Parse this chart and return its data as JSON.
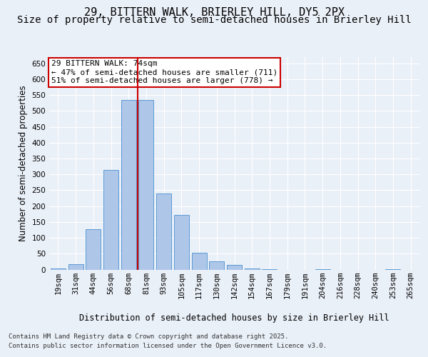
{
  "title1": "29, BITTERN WALK, BRIERLEY HILL, DY5 2PX",
  "title2": "Size of property relative to semi-detached houses in Brierley Hill",
  "xlabel": "Distribution of semi-detached houses by size in Brierley Hill",
  "ylabel": "Number of semi-detached properties",
  "categories": [
    "19sqm",
    "31sqm",
    "44sqm",
    "56sqm",
    "68sqm",
    "81sqm",
    "93sqm",
    "105sqm",
    "117sqm",
    "130sqm",
    "142sqm",
    "154sqm",
    "167sqm",
    "179sqm",
    "191sqm",
    "204sqm",
    "216sqm",
    "228sqm",
    "240sqm",
    "253sqm",
    "265sqm"
  ],
  "values": [
    3,
    18,
    128,
    315,
    535,
    535,
    240,
    172,
    54,
    27,
    15,
    3,
    2,
    0,
    0,
    1,
    0,
    0,
    0,
    1,
    0
  ],
  "bar_color": "#aec6e8",
  "bar_edge_color": "#5b9bd5",
  "vline_x": 4.5,
  "vline_color": "#cc0000",
  "annotation_title": "29 BITTERN WALK: 74sqm",
  "annotation_line1": "← 47% of semi-detached houses are smaller (711)",
  "annotation_line2": "51% of semi-detached houses are larger (778) →",
  "annotation_box_color": "#cc0000",
  "ylim": [
    0,
    670
  ],
  "yticks": [
    0,
    50,
    100,
    150,
    200,
    250,
    300,
    350,
    400,
    450,
    500,
    550,
    600,
    650
  ],
  "footnote1": "Contains HM Land Registry data © Crown copyright and database right 2025.",
  "footnote2": "Contains public sector information licensed under the Open Government Licence v3.0.",
  "bg_color": "#eaf0f8",
  "grid_color": "#ffffff",
  "title_fontsize": 11,
  "subtitle_fontsize": 10,
  "axis_fontsize": 8.5,
  "tick_fontsize": 7.5
}
